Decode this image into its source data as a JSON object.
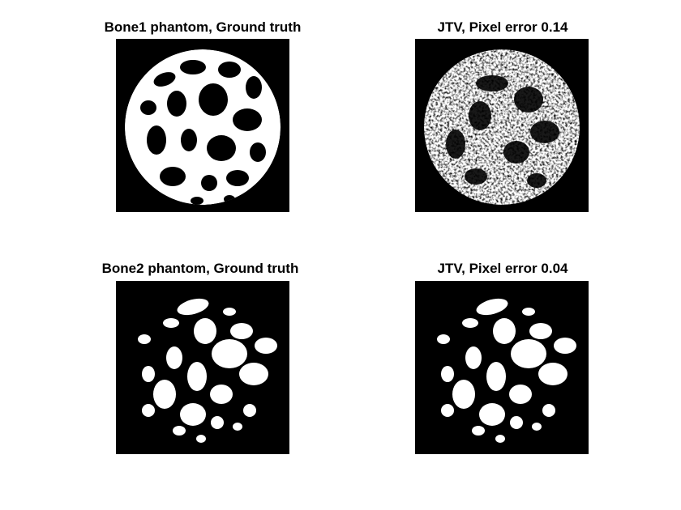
{
  "figure": {
    "panels": [
      {
        "title": "Bone1 phantom, Ground truth",
        "pattern": "bone1-ground-truth"
      },
      {
        "title": "JTV, Pixel error 0.14",
        "pattern": "bone1-jtv-reconstruction"
      },
      {
        "title": "Bone2 phantom, Ground truth",
        "pattern": "bone2-ground-truth"
      },
      {
        "title": "JTV, Pixel error 0.04",
        "pattern": "bone2-jtv-reconstruction"
      }
    ],
    "colors": {
      "background": "#ffffff",
      "image_background": "#000000",
      "foreground": "#ffffff"
    }
  }
}
